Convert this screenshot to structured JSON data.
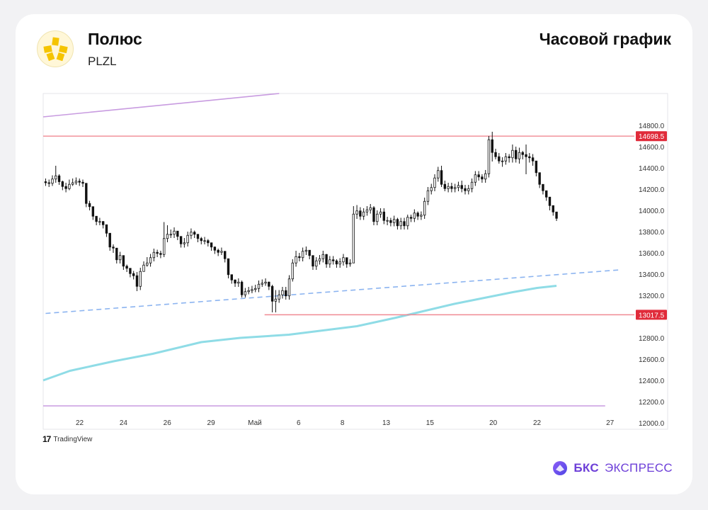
{
  "header": {
    "company": "Полюс",
    "ticker": "PLZL",
    "chart_title": "Часовой график",
    "logo_icon": "polyus-logo-icon"
  },
  "footer": {
    "tradingview": "TradingView",
    "brand_bks": "БКС",
    "brand_express": "ЭКСПРЕСС",
    "brand_color": "#6d3fd8"
  },
  "chart_data": {
    "type": "candlestick",
    "title": "",
    "ylim": [
      11940,
      15100
    ],
    "y_ticks": [
      12000,
      12200,
      12400,
      12600,
      12800,
      13000,
      13200,
      13400,
      13600,
      13800,
      14000,
      14200,
      14400,
      14600,
      14800
    ],
    "y_tick_labels": [
      "12000.0",
      "12200.0",
      "12400.0",
      "12600.0",
      "12800.0",
      "13000.0",
      "13200.0",
      "13400.0",
      "13600.0",
      "13800.0",
      "14000.0",
      "14200.0",
      "14400.0",
      "14600.0",
      "14800.0"
    ],
    "x_tick_labels": [
      "22",
      "24",
      "26",
      "29",
      "Май",
      "6",
      "8",
      "13",
      "15",
      "20",
      "22",
      "27"
    ],
    "x_tick_positions": [
      7,
      16,
      25,
      34,
      43,
      52,
      61,
      70,
      79,
      92,
      101,
      116
    ],
    "x_range": [
      -0.5,
      121
    ],
    "horizontal_levels": [
      {
        "value": 14698.5,
        "label": "14698.5",
        "color": "#f08a93",
        "x_start": -0.5
      },
      {
        "value": 13017.5,
        "label": "13017.5",
        "color": "#f08a93",
        "x_start": 45
      }
    ],
    "channel_lines": [
      {
        "color": "#c89be0",
        "points": [
          [
            -0.5,
            14880
          ],
          [
            48,
            15100
          ]
        ]
      },
      {
        "color": "#c89be0",
        "points": [
          [
            -0.5,
            12160
          ],
          [
            115,
            12160
          ]
        ]
      }
    ],
    "trend_line": {
      "color": "#8cb4f0",
      "dashed": true,
      "points": [
        [
          0,
          13030
        ],
        [
          118,
          13440
        ]
      ]
    },
    "moving_average": {
      "color": "#8fdce6",
      "points": [
        [
          -0.5,
          12400
        ],
        [
          5,
          12490
        ],
        [
          14,
          12580
        ],
        [
          22,
          12650
        ],
        [
          32,
          12760
        ],
        [
          40,
          12800
        ],
        [
          50,
          12830
        ],
        [
          64,
          12910
        ],
        [
          72,
          12990
        ],
        [
          84,
          13120
        ],
        [
          96,
          13230
        ],
        [
          101,
          13270
        ],
        [
          105,
          13290
        ]
      ]
    },
    "candles": {
      "open": [
        14270,
        14260,
        14255,
        14295,
        14325,
        14270,
        14225,
        14205,
        14245,
        14260,
        14275,
        14265,
        14255,
        14065,
        14035,
        13945,
        13895,
        13895,
        13865,
        13785,
        13655,
        13645,
        13535,
        13575,
        13475,
        13455,
        13405,
        13385,
        13285,
        13425,
        13485,
        13505,
        13555,
        13605,
        13595,
        13585,
        13735,
        13775,
        13775,
        13805,
        13755,
        13685,
        13695,
        13765,
        13795,
        13775,
        13735,
        13715,
        13715,
        13695,
        13655,
        13625,
        13605,
        13615,
        13545,
        13395,
        13345,
        13315,
        13325,
        13205,
        13235,
        13245,
        13255,
        13265,
        13305,
        13315,
        13325,
        13285,
        13145,
        13165,
        13205,
        13245,
        13195,
        13355,
        13505,
        13565,
        13555,
        13615,
        13625,
        13575,
        13475,
        13525,
        13545,
        13585,
        13495,
        13535,
        13525,
        13495,
        13515,
        13555,
        13495,
        13505,
        13965,
        13995,
        13945,
        13985,
        14005,
        14025,
        13895,
        13965,
        13985,
        13905,
        13905,
        13885,
        13915,
        13855,
        13895,
        13855,
        13935,
        13925,
        13975,
        13945,
        13955,
        14085,
        14185,
        14215,
        14305,
        14375,
        14245,
        14205,
        14225,
        14205,
        14215,
        14235,
        14205,
        14185,
        14205,
        14265,
        14335,
        14315,
        14295,
        14345,
        14665,
        14545,
        14505,
        14465,
        14465,
        14505,
        14495,
        14565,
        14485,
        14545,
        14525,
        14505,
        14495,
        14465,
        14355,
        14245,
        14185,
        14125,
        14045,
        13985
      ],
      "close": [
        14260,
        14255,
        14295,
        14325,
        14270,
        14225,
        14205,
        14245,
        14260,
        14275,
        14265,
        14255,
        14065,
        14035,
        13945,
        13895,
        13895,
        13865,
        13785,
        13655,
        13645,
        13535,
        13575,
        13475,
        13455,
        13405,
        13385,
        13285,
        13425,
        13485,
        13505,
        13555,
        13605,
        13595,
        13585,
        13735,
        13775,
        13775,
        13805,
        13755,
        13685,
        13695,
        13765,
        13795,
        13775,
        13735,
        13715,
        13715,
        13695,
        13655,
        13625,
        13605,
        13615,
        13545,
        13395,
        13345,
        13315,
        13325,
        13205,
        13235,
        13245,
        13255,
        13265,
        13305,
        13315,
        13325,
        13285,
        13145,
        13165,
        13205,
        13245,
        13195,
        13355,
        13505,
        13565,
        13555,
        13615,
        13625,
        13575,
        13475,
        13525,
        13545,
        13585,
        13495,
        13535,
        13525,
        13495,
        13515,
        13555,
        13495,
        13505,
        13965,
        13995,
        13945,
        13985,
        14005,
        14025,
        13895,
        13965,
        13985,
        13905,
        13905,
        13885,
        13915,
        13855,
        13895,
        13855,
        13935,
        13925,
        13975,
        13945,
        13955,
        14085,
        14185,
        14215,
        14305,
        14375,
        14245,
        14205,
        14225,
        14205,
        14215,
        14235,
        14205,
        14185,
        14205,
        14265,
        14335,
        14315,
        14295,
        14345,
        14665,
        14545,
        14505,
        14465,
        14465,
        14505,
        14495,
        14565,
        14485,
        14545,
        14525,
        14505,
        14495,
        14465,
        14355,
        14245,
        14185,
        14125,
        14045,
        13985,
        13925
      ],
      "high": [
        14300,
        14290,
        14330,
        14420,
        14340,
        14280,
        14260,
        14290,
        14300,
        14310,
        14300,
        14290,
        14120,
        14090,
        13980,
        13930,
        13930,
        13900,
        13820,
        13700,
        13680,
        13590,
        13610,
        13520,
        13490,
        13440,
        13430,
        13420,
        13460,
        13520,
        13560,
        13590,
        13640,
        13630,
        13620,
        13890,
        13860,
        13820,
        13840,
        13800,
        13730,
        13740,
        13800,
        13830,
        13810,
        13770,
        13750,
        13750,
        13730,
        13690,
        13660,
        13640,
        13650,
        13580,
        13430,
        13380,
        13350,
        13360,
        13340,
        13270,
        13280,
        13290,
        13300,
        13340,
        13350,
        13360,
        13330,
        13300,
        13250,
        13250,
        13280,
        13280,
        13390,
        13540,
        13620,
        13600,
        13650,
        13660,
        13620,
        13560,
        13560,
        13580,
        13620,
        13590,
        13570,
        13570,
        13540,
        13550,
        13590,
        13540,
        13540,
        14040,
        14050,
        14030,
        14020,
        14040,
        14060,
        14040,
        14000,
        14020,
        14020,
        13940,
        13930,
        13950,
        13930,
        13930,
        13930,
        13960,
        13960,
        14010,
        13990,
        13990,
        14120,
        14220,
        14250,
        14340,
        14410,
        14420,
        14280,
        14260,
        14260,
        14250,
        14270,
        14280,
        14240,
        14240,
        14300,
        14370,
        14370,
        14340,
        14380,
        14700,
        14740,
        14580,
        14540,
        14500,
        14540,
        14530,
        14620,
        14600,
        14590,
        14560,
        14620,
        14540,
        14530,
        14400,
        14280,
        14230,
        14170,
        14090,
        14020,
        13960
      ],
      "low": [
        14230,
        14220,
        14230,
        14260,
        14240,
        14190,
        14170,
        14190,
        14230,
        14240,
        14230,
        14220,
        14030,
        14000,
        13910,
        13860,
        13860,
        13830,
        13750,
        13620,
        13600,
        13500,
        13500,
        13440,
        13420,
        13370,
        13350,
        13240,
        13250,
        13450,
        13470,
        13470,
        13520,
        13560,
        13550,
        13560,
        13700,
        13740,
        13740,
        13720,
        13650,
        13650,
        13660,
        13730,
        13740,
        13700,
        13680,
        13680,
        13660,
        13620,
        13590,
        13570,
        13580,
        13510,
        13360,
        13310,
        13280,
        13280,
        13180,
        13180,
        13210,
        13220,
        13230,
        13230,
        13280,
        13290,
        13250,
        13040,
        13040,
        13130,
        13170,
        13160,
        13160,
        13330,
        13470,
        13520,
        13520,
        13580,
        13540,
        13440,
        13440,
        13490,
        13510,
        13460,
        13460,
        13490,
        13460,
        13460,
        13480,
        13460,
        13470,
        13680,
        13920,
        13910,
        13910,
        13950,
        13970,
        13860,
        13860,
        13930,
        13870,
        13860,
        13850,
        13850,
        13820,
        13820,
        13820,
        13820,
        13890,
        13890,
        13910,
        13910,
        13920,
        14050,
        14150,
        14180,
        14270,
        14220,
        14180,
        14170,
        14170,
        14170,
        14180,
        14170,
        14150,
        14150,
        14170,
        14230,
        14280,
        14260,
        14260,
        14310,
        14460,
        14480,
        14440,
        14410,
        14430,
        14450,
        14450,
        14450,
        14440,
        14480,
        14340,
        14450,
        14420,
        14320,
        14210,
        14150,
        14090,
        14000,
        13950,
        13900
      ]
    }
  }
}
